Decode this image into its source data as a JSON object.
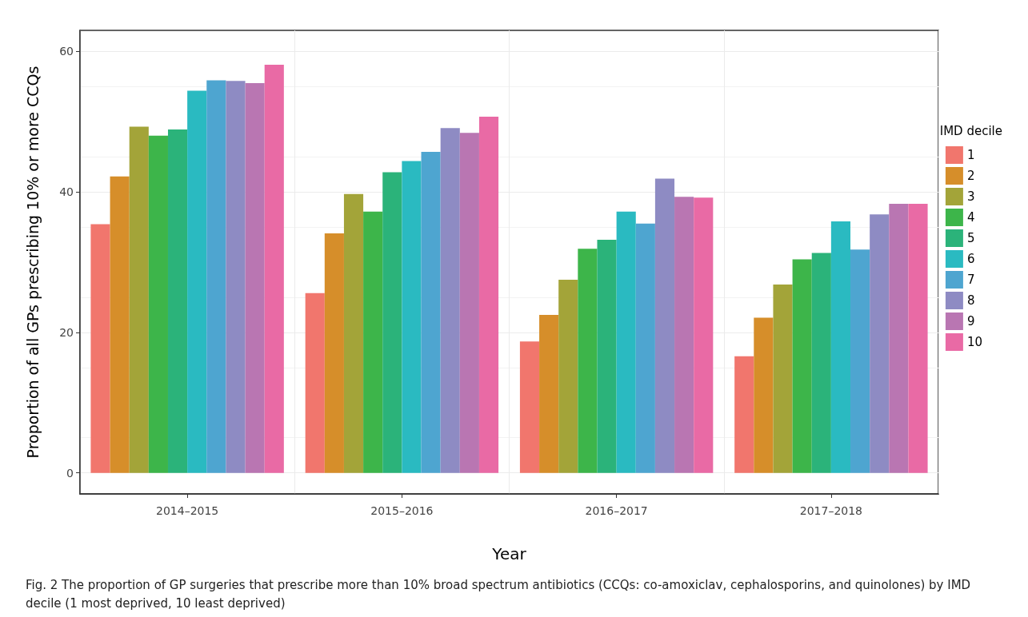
{
  "chart_data": {
    "type": "bar",
    "xlabel": "Year",
    "ylabel": "Proportion of all GPs prescribing 10% or more CCQs",
    "legend_title": "IMD decile",
    "categories": [
      "2014–2015",
      "2015–2016",
      "2016–2017",
      "2017–2018"
    ],
    "series": [
      {
        "name": "1",
        "color": "#f1766d",
        "values": [
          35.4,
          25.6,
          18.7,
          16.6
        ]
      },
      {
        "name": "2",
        "color": "#d68e2a",
        "values": [
          42.2,
          34.1,
          22.5,
          22.1
        ]
      },
      {
        "name": "3",
        "color": "#a3a439",
        "values": [
          49.3,
          39.7,
          27.5,
          26.8
        ]
      },
      {
        "name": "4",
        "color": "#3db54a",
        "values": [
          48.0,
          37.2,
          31.9,
          30.4
        ]
      },
      {
        "name": "5",
        "color": "#2bb37a",
        "values": [
          48.9,
          42.8,
          33.2,
          31.3
        ]
      },
      {
        "name": "6",
        "color": "#2abac1",
        "values": [
          54.4,
          44.4,
          37.2,
          35.8
        ]
      },
      {
        "name": "7",
        "color": "#4ea5d0",
        "values": [
          55.9,
          45.7,
          35.5,
          31.8
        ]
      },
      {
        "name": "8",
        "color": "#8e8bc3",
        "values": [
          55.8,
          49.1,
          41.9,
          36.8
        ]
      },
      {
        "name": "9",
        "color": "#b976b2",
        "values": [
          55.5,
          48.4,
          39.3,
          38.3
        ]
      },
      {
        "name": "10",
        "color": "#e96aa5",
        "values": [
          58.1,
          50.7,
          39.2,
          38.3
        ]
      }
    ],
    "ylim": [
      -3,
      63
    ],
    "yticks": [
      0,
      20,
      40,
      60
    ],
    "grid": true,
    "legend": "right",
    "annotations": [
      "Fig. 2 The proportion of GP surgeries that prescribe more than 10% broad spectrum antibiotics (CCQs: co-amoxiclav, cephalosporins, and quinolones) by IMD decile (1 most deprived, 10 least deprived)"
    ]
  }
}
